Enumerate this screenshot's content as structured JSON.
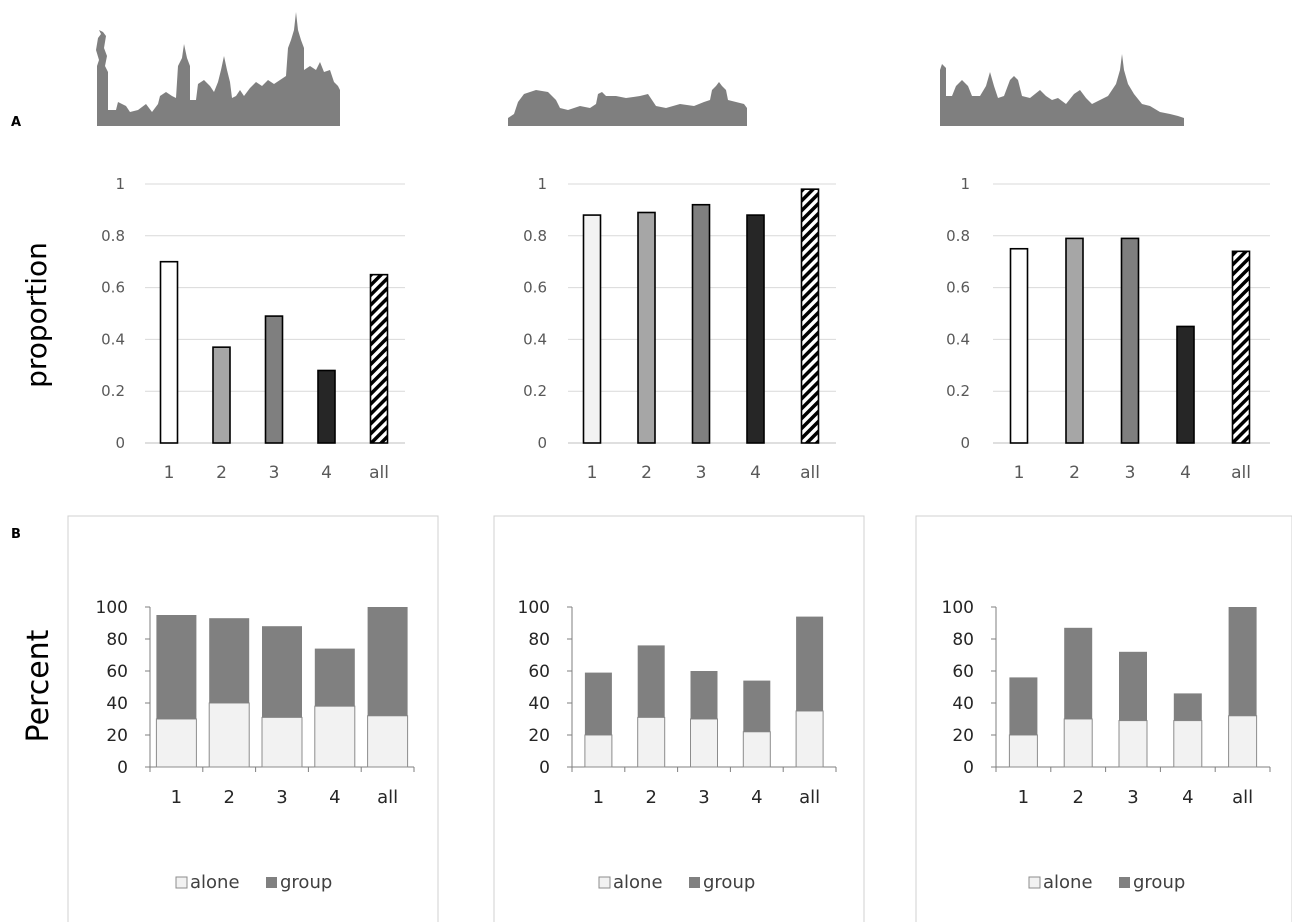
{
  "figure": {
    "panel_labels": [
      "A",
      "B"
    ],
    "colors": {
      "grid": "#d9d9d9",
      "axis": "#bfbfbf",
      "axis_b": "#7f7f7f",
      "box_border": "#d0d0d0",
      "skyline": "#7f7f7f",
      "alone": "#f2f2f2",
      "group": "#808080",
      "bar_stroke": "#000000"
    },
    "skylines": [
      "new-york-skyline",
      "rome-skyline",
      "cairo-skyline"
    ]
  },
  "chart_data": [
    {
      "type": "bar",
      "panel": "A",
      "ylabel": "proportion",
      "ylim": [
        0,
        1
      ],
      "yticks": [
        "0",
        "0.2",
        "0.4",
        "0.6",
        "0.8",
        "1"
      ],
      "categories": [
        "1",
        "2",
        "3",
        "4",
        "all"
      ],
      "values": [
        0.7,
        0.37,
        0.49,
        0.28,
        0.65
      ],
      "bar_fills": [
        "#ffffff",
        "#a6a6a6",
        "#7f7f7f",
        "#262626",
        "hatch"
      ],
      "grid": true
    },
    {
      "type": "bar",
      "panel": "A",
      "ylabel": "",
      "ylim": [
        0,
        1
      ],
      "yticks": [
        "0",
        "0.2",
        "0.4",
        "0.6",
        "0.8",
        "1"
      ],
      "categories": [
        "1",
        "2",
        "3",
        "4",
        "all"
      ],
      "values": [
        0.88,
        0.89,
        0.92,
        0.88,
        0.98
      ],
      "bar_fills": [
        "#f2f2f2",
        "#a6a6a6",
        "#7f7f7f",
        "#262626",
        "hatch"
      ],
      "grid": true
    },
    {
      "type": "bar",
      "panel": "A",
      "ylabel": "",
      "ylim": [
        0,
        1
      ],
      "yticks": [
        "0",
        "0.2",
        "0.4",
        "0.6",
        "0.8",
        "1"
      ],
      "categories": [
        "1",
        "2",
        "3",
        "4",
        "all"
      ],
      "values": [
        0.75,
        0.79,
        0.79,
        0.45,
        0.74
      ],
      "bar_fills": [
        "#ffffff",
        "#a6a6a6",
        "#7f7f7f",
        "#262626",
        "hatch"
      ],
      "grid": true
    },
    {
      "type": "bar",
      "stacked": true,
      "panel": "B",
      "ylabel": "Percent",
      "ylim": [
        0,
        100
      ],
      "yticks": [
        "0",
        "20",
        "40",
        "60",
        "80",
        "100"
      ],
      "categories": [
        "1",
        "2",
        "3",
        "4",
        "all"
      ],
      "series": [
        {
          "name": "alone",
          "values": [
            30,
            40,
            31,
            38,
            32
          ]
        },
        {
          "name": "group",
          "values": [
            65,
            53,
            57,
            36,
            68
          ]
        }
      ],
      "legend": "bottom",
      "grid": false
    },
    {
      "type": "bar",
      "stacked": true,
      "panel": "B",
      "ylabel": "",
      "ylim": [
        0,
        100
      ],
      "yticks": [
        "0",
        "20",
        "40",
        "60",
        "80",
        "100"
      ],
      "categories": [
        "1",
        "2",
        "3",
        "4",
        "all"
      ],
      "series": [
        {
          "name": "alone",
          "values": [
            20,
            31,
            30,
            22,
            35
          ]
        },
        {
          "name": "group",
          "values": [
            39,
            45,
            30,
            32,
            59
          ]
        }
      ],
      "legend": "bottom",
      "grid": false
    },
    {
      "type": "bar",
      "stacked": true,
      "panel": "B",
      "ylabel": "",
      "ylim": [
        0,
        100
      ],
      "yticks": [
        "0",
        "20",
        "40",
        "60",
        "80",
        "100"
      ],
      "categories": [
        "1",
        "2",
        "3",
        "4",
        "all"
      ],
      "series": [
        {
          "name": "alone",
          "values": [
            20,
            30,
            29,
            29,
            32
          ]
        },
        {
          "name": "group",
          "values": [
            36,
            57,
            43,
            17,
            68
          ]
        }
      ],
      "legend": "bottom",
      "grid": false
    }
  ]
}
